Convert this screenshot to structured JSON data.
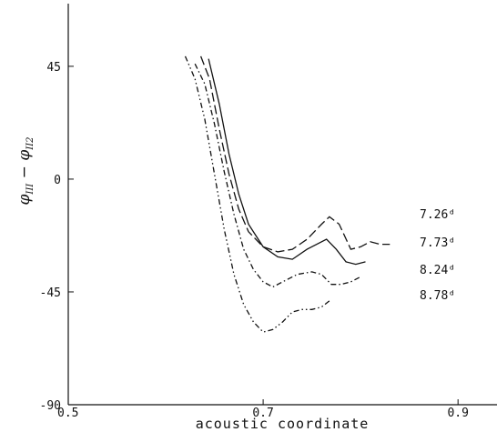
{
  "chart_data": {
    "type": "line",
    "title": "",
    "xlabel": "acoustic coordinate",
    "ylabel": "φ_III − φ_II2",
    "ylabel_main": "φ",
    "ylabel_sub1": "III",
    "ylabel_minus": " − ",
    "ylabel_main2": "φ",
    "ylabel_sub2": "II2",
    "xlim": [
      0.5,
      0.94
    ],
    "ylim": [
      -90,
      70
    ],
    "x_ticks": [
      0.5,
      0.7,
      0.9
    ],
    "x_tick_labels": [
      "0.5",
      "0.7",
      "0.9"
    ],
    "y_ticks": [
      -90,
      -45,
      0,
      45
    ],
    "y_tick_labels": [
      "-90",
      "-45",
      "0",
      "45"
    ],
    "grid": false,
    "legend_position": "right",
    "series": [
      {
        "name": "7.26ᵈ",
        "dash": "10,4",
        "x": [
          0.636,
          0.645,
          0.655,
          0.665,
          0.675,
          0.685,
          0.7,
          0.715,
          0.73,
          0.745,
          0.76,
          0.768,
          0.778,
          0.79,
          0.8,
          0.81,
          0.82,
          0.83
        ],
        "y": [
          49,
          40,
          20,
          2,
          -12,
          -21,
          -27,
          -29,
          -28,
          -24,
          -18,
          -15,
          -18,
          -28,
          -27,
          -25,
          -26,
          -26
        ]
      },
      {
        "name": "7.73ᵈ",
        "dash": "",
        "x": [
          0.644,
          0.655,
          0.665,
          0.675,
          0.685,
          0.7,
          0.715,
          0.73,
          0.745,
          0.755,
          0.765,
          0.775,
          0.785,
          0.795,
          0.805
        ],
        "y": [
          48,
          30,
          10,
          -6,
          -18,
          -27,
          -31,
          -32,
          -28,
          -26,
          -24,
          -28,
          -33,
          -34,
          -33
        ]
      },
      {
        "name": "8.24ᵈ",
        "dash": "6,3,1.5,3",
        "x": [
          0.63,
          0.64,
          0.65,
          0.66,
          0.67,
          0.68,
          0.69,
          0.7,
          0.71,
          0.72,
          0.735,
          0.75,
          0.76,
          0.77,
          0.78,
          0.79,
          0.8
        ],
        "y": [
          46,
          38,
          22,
          3,
          -14,
          -28,
          -36,
          -41,
          -43,
          -41,
          -38,
          -37,
          -38,
          -42,
          -42,
          -41,
          -39
        ]
      },
      {
        "name": "8.78ᵈ",
        "dash": "6,3,1.5,3,1.5,3",
        "x": [
          0.62,
          0.63,
          0.64,
          0.65,
          0.66,
          0.67,
          0.68,
          0.69,
          0.7,
          0.71,
          0.72,
          0.73,
          0.74,
          0.75,
          0.76,
          0.77
        ],
        "y": [
          49,
          40,
          24,
          2,
          -20,
          -38,
          -50,
          -57,
          -61,
          -60,
          -57,
          -53,
          -52,
          -52,
          -51,
          -48
        ]
      }
    ]
  }
}
